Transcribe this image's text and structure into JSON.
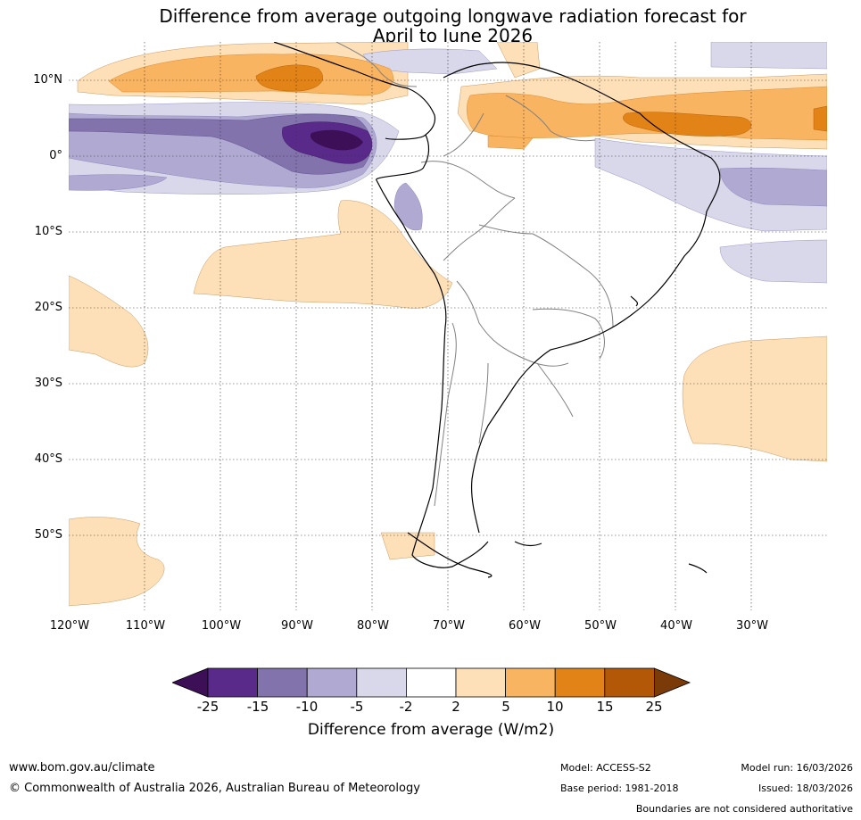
{
  "title": {
    "line1": "Difference from average outgoing longwave radiation forecast for",
    "line2": "April to June 2026"
  },
  "map": {
    "lat_labels": [
      "10°N",
      "0°",
      "10°S",
      "20°S",
      "30°S",
      "40°S",
      "50°S"
    ],
    "lon_labels": [
      "120°W",
      "110°W",
      "100°W",
      "90°W",
      "80°W",
      "70°W",
      "60°W",
      "50°W",
      "40°W",
      "30°W"
    ]
  },
  "colorbar": {
    "ticks": [
      "-25",
      "-15",
      "-10",
      "-5",
      "-2",
      "2",
      "5",
      "10",
      "15",
      "25"
    ],
    "colors": [
      "#3c0f57",
      "#5a2a8a",
      "#8373ad",
      "#b0aad3",
      "#d8d8ea",
      "#ffffff",
      "#fde0b7",
      "#f9b462",
      "#e28317",
      "#b35806",
      "#7a3b08"
    ],
    "label": "Difference from average (W/m2)"
  },
  "footer": {
    "url": "www.bom.gov.au/climate",
    "copyright": "© Commonwealth of Australia 2026, Australian Bureau of Meteorology",
    "model": "Model: ACCESS-S2",
    "base_period": "Base period: 1981-2018",
    "model_run": "Model run: 16/03/2026",
    "issued": "Issued: 18/03/2026",
    "disclaimer": "Boundaries are not considered authoritative"
  }
}
